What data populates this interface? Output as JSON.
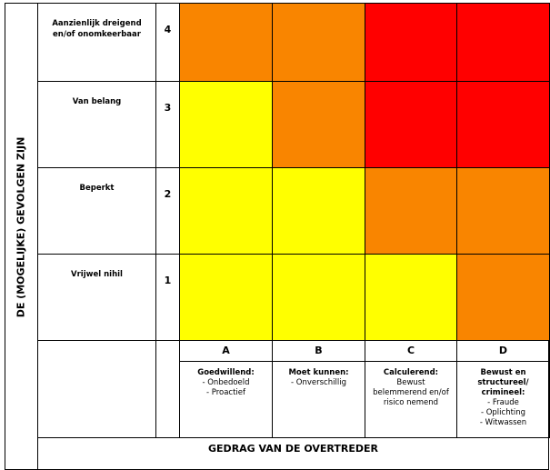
{
  "vertical_title": "DE (MOGELIJKE) GEVOLGEN ZIJN",
  "horizontal_title": "GEDRAG VAN DE OVERTREDER",
  "rows": [
    {
      "label": "Aanzienlijk dreigend en/of onomkeerbaar",
      "level": "4",
      "cells": [
        "#f98500",
        "#f98500",
        "#ff0000",
        "#ff0000"
      ]
    },
    {
      "label": "Van belang",
      "level": "3",
      "cells": [
        "#ffff00",
        "#f98500",
        "#ff0000",
        "#ff0000"
      ]
    },
    {
      "label": "Beperkt",
      "level": "2",
      "cells": [
        "#ffff00",
        "#ffff00",
        "#f98500",
        "#f98500"
      ]
    },
    {
      "label": "Vrijwel nihil",
      "level": "1",
      "cells": [
        "#ffff00",
        "#ffff00",
        "#ffff00",
        "#f98500"
      ]
    }
  ],
  "columns": [
    {
      "letter": "A",
      "heading": [
        "Goedwillend:"
      ],
      "lines": [
        "- Onbedoeld",
        "- Proactief"
      ]
    },
    {
      "letter": "B",
      "heading": [
        "Moet kunnen:"
      ],
      "lines": [
        "- Onverschillig"
      ]
    },
    {
      "letter": "C",
      "heading": [
        "Calculerend:"
      ],
      "lines": [
        "Bewust",
        "belemmerend en/of",
        "risico nemend"
      ]
    },
    {
      "letter": "D",
      "heading": [
        "Bewust en",
        "structureel/",
        "crimineel:"
      ],
      "lines": [
        "- Fraude",
        "- Oplichting",
        "- Witwassen"
      ]
    }
  ]
}
